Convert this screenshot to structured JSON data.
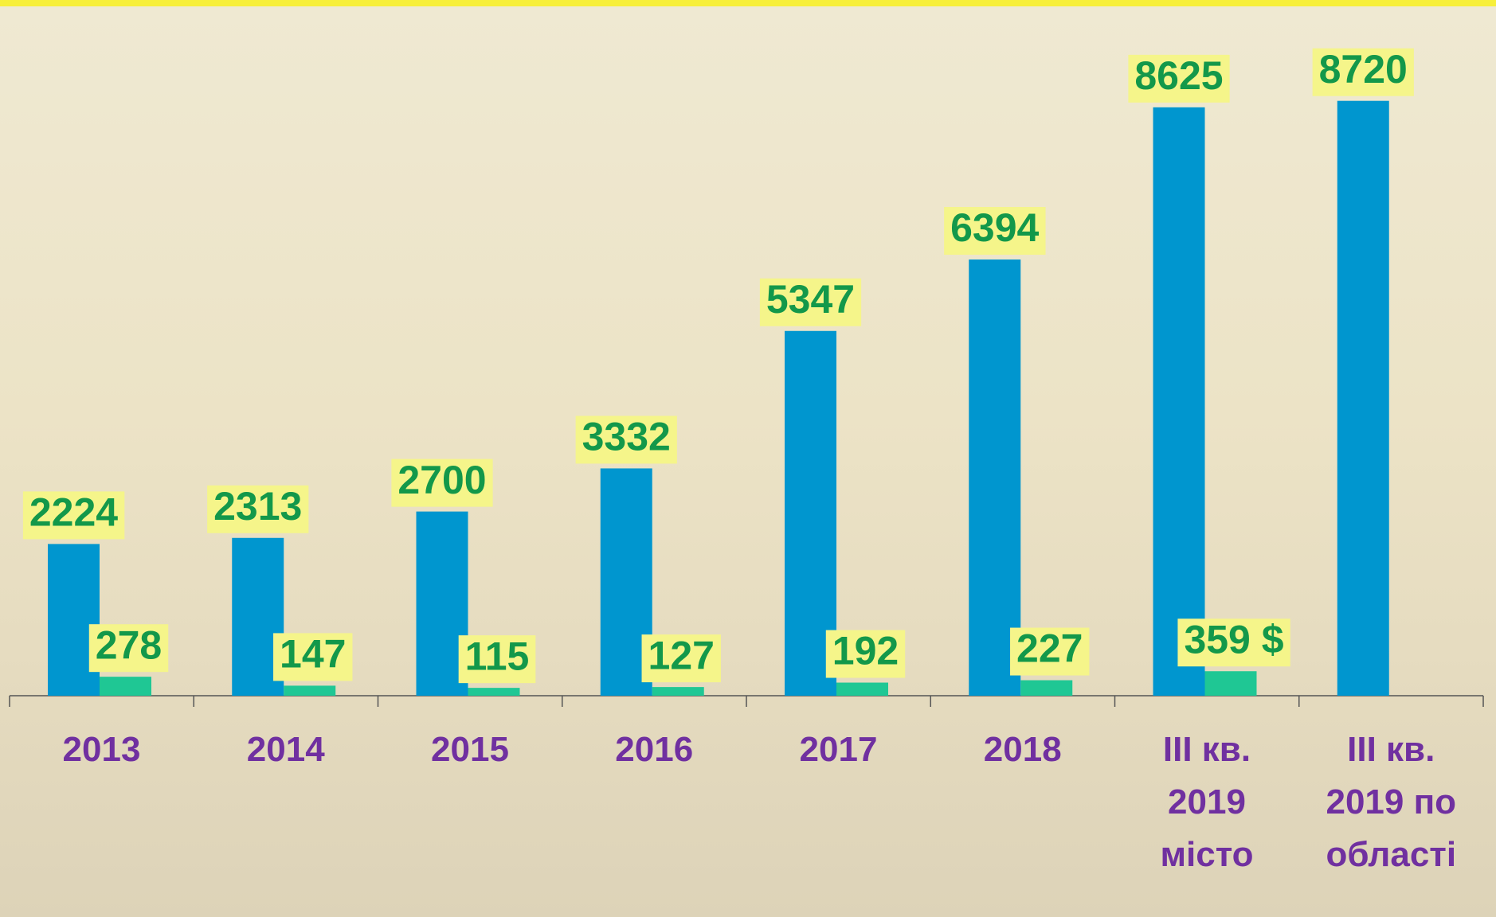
{
  "chart_data": {
    "type": "bar",
    "categories": [
      "2013",
      "2014",
      "2015",
      "2016",
      "2017",
      "2018",
      "III кв.\n2019\nмісто",
      "III кв.\n2019 по\nобласті"
    ],
    "series": [
      {
        "color": "#0096cf",
        "values": [
          2224,
          2313,
          2700,
          3332,
          5347,
          6394,
          8625,
          8720
        ]
      },
      {
        "color": "#1fc794",
        "values": [
          278,
          147,
          115,
          127,
          192,
          227,
          359,
          null
        ],
        "value_labels": [
          "278",
          "147",
          "115",
          "127",
          "192",
          "227",
          "359 $",
          null
        ]
      }
    ],
    "ylim": [
      0,
      10000
    ]
  }
}
